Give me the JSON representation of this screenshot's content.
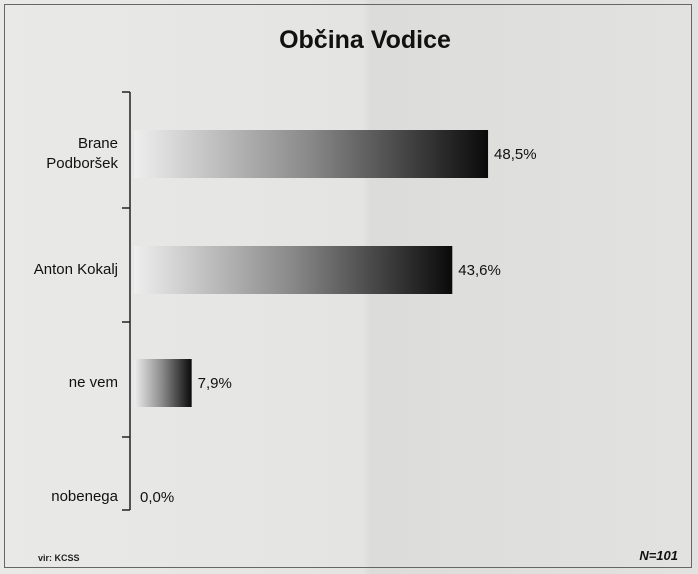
{
  "chart_data": {
    "type": "bar",
    "orientation": "horizontal",
    "title": "Občina Vodice",
    "categories": [
      "Brane Podboršek",
      "Anton Kokalj",
      "ne vem",
      "nobenega"
    ],
    "values": [
      48.5,
      43.6,
      7.9,
      0.0
    ],
    "value_labels": [
      "48,5%",
      "43,6%",
      "7,9%",
      "0,0%"
    ],
    "color": "#111111",
    "source": "vir: KCSS",
    "note": "N=101"
  }
}
